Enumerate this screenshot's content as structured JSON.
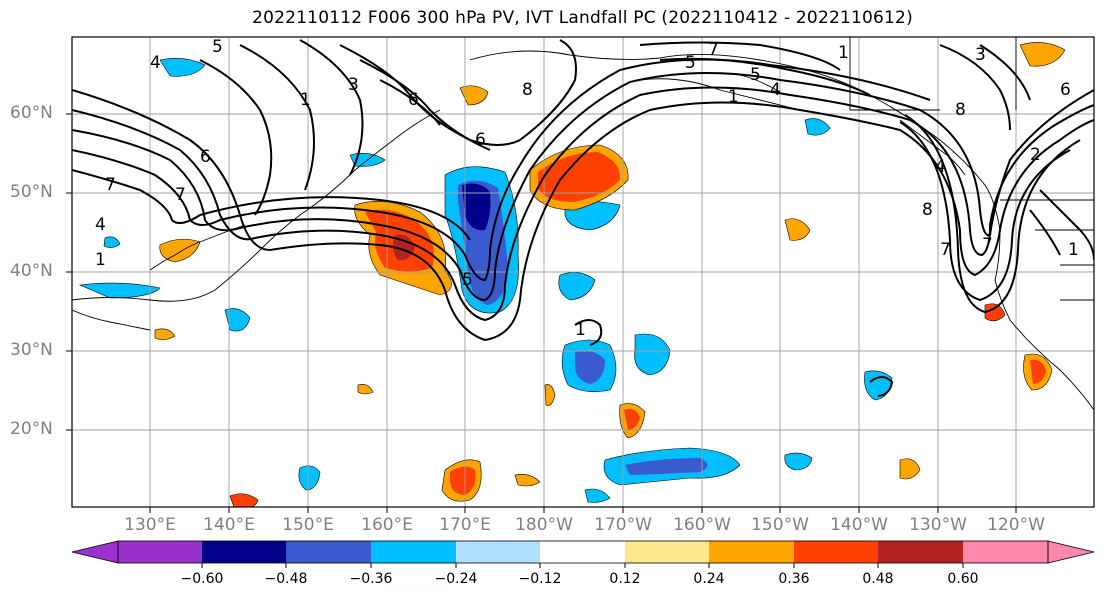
{
  "title": "2022110112 F006 300 hPa PV, IVT Landfall PC (2022110412 - 2022110612)",
  "lat_labels": [
    "60°N",
    "50°N",
    "40°N",
    "30°N",
    "20°N"
  ],
  "lon_labels": [
    "130°E",
    "140°E",
    "150°E",
    "160°E",
    "170°E",
    "180°W",
    "170°W",
    "160°W",
    "150°W",
    "140°W",
    "130°W",
    "120°W"
  ],
  "colorbar": {
    "ticks": [
      "−0.60",
      "−0.48",
      "−0.36",
      "−0.24",
      "−0.12",
      "0.12",
      "0.24",
      "0.36",
      "0.48",
      "0.60"
    ],
    "colors": [
      "#9932cc",
      "#00008b",
      "#3a5bd0",
      "#00bfff",
      "#b0e0ff",
      "#ffffff",
      "#ffe88a",
      "#ffa500",
      "#ff4000",
      "#b22222",
      "#ff88aa"
    ]
  },
  "contour_labels": [
    "1",
    "3",
    "6",
    "5",
    "7",
    "6",
    "8",
    "5",
    "4",
    "1",
    "7",
    "5",
    "4",
    "1",
    "8",
    "7",
    "4",
    "1",
    "5",
    "6",
    "7",
    "8",
    "1",
    "3",
    "4",
    "6",
    "1",
    "7",
    "2"
  ]
}
